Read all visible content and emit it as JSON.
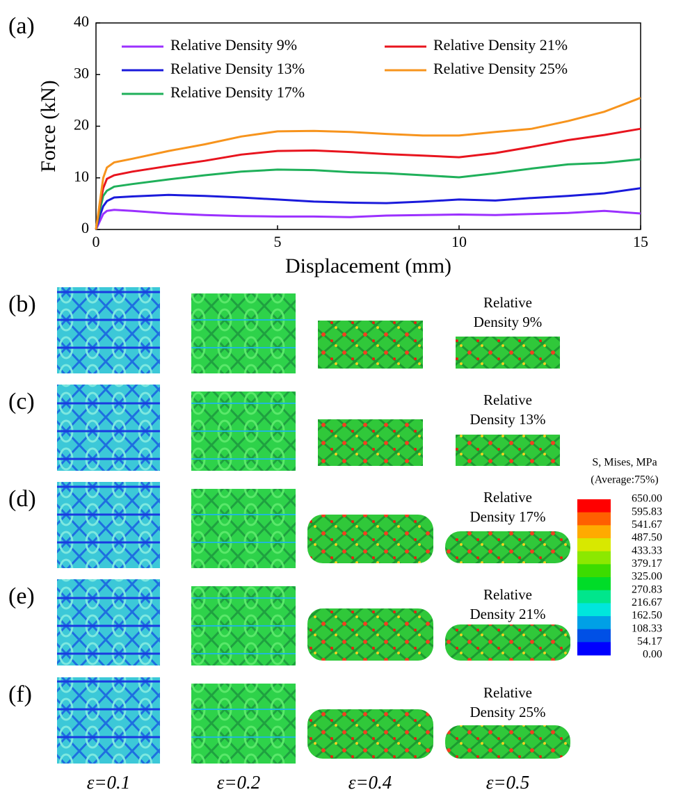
{
  "panel_a_label": "(a)",
  "chart_data": {
    "type": "line",
    "xlabel": "Displacement (mm)",
    "ylabel": "Force (kN)",
    "x": [
      0,
      0.1,
      0.2,
      0.3,
      0.5,
      1,
      2,
      3,
      4,
      5,
      6,
      7,
      8,
      9,
      10,
      11,
      12,
      13,
      14,
      15
    ],
    "series": [
      {
        "name": "Relative Density 9%",
        "color": "#9b30ff",
        "values": [
          0,
          1.5,
          3,
          3.6,
          3.8,
          3.6,
          3.1,
          2.8,
          2.6,
          2.5,
          2.5,
          2.4,
          2.7,
          2.8,
          2.9,
          2.8,
          3.0,
          3.2,
          3.6,
          3.1
        ]
      },
      {
        "name": "Relative Density 13%",
        "color": "#1a1adb",
        "values": [
          0,
          2.5,
          4.5,
          5.5,
          6.2,
          6.4,
          6.7,
          6.5,
          6.2,
          5.8,
          5.4,
          5.2,
          5.1,
          5.4,
          5.8,
          5.6,
          6.1,
          6.5,
          7.0,
          8.0
        ]
      },
      {
        "name": "Relative Density 17%",
        "color": "#1fb05a",
        "values": [
          0,
          3.5,
          6.5,
          7.5,
          8.3,
          8.8,
          9.7,
          10.5,
          11.2,
          11.6,
          11.5,
          11.1,
          10.9,
          10.5,
          10.1,
          10.9,
          11.8,
          12.6,
          12.9,
          13.6
        ]
      },
      {
        "name": "Relative Density 21%",
        "color": "#e8141e",
        "values": [
          0,
          4.5,
          8,
          9.8,
          10.5,
          11.2,
          12.3,
          13.3,
          14.5,
          15.2,
          15.3,
          15.0,
          14.6,
          14.3,
          14.0,
          14.8,
          16.0,
          17.3,
          18.3,
          19.5
        ]
      },
      {
        "name": "Relative Density 25%",
        "color": "#f7941d",
        "values": [
          0,
          5,
          10,
          12,
          13,
          13.7,
          15.2,
          16.5,
          18,
          19,
          19.1,
          18.9,
          18.5,
          18.2,
          18.2,
          18.9,
          19.5,
          21.0,
          22.8,
          25.5
        ]
      }
    ],
    "xlim": [
      0,
      15
    ],
    "xticks": [
      0,
      5,
      10,
      15
    ],
    "ylim": [
      0,
      40
    ],
    "yticks": [
      0,
      10,
      20,
      30,
      40
    ]
  },
  "panels": {
    "labels": [
      "(b)",
      "(c)",
      "(d)",
      "(e)",
      "(f)"
    ],
    "densities": [
      [
        "Relative",
        "Density 9%"
      ],
      [
        "Relative",
        "Density 13%"
      ],
      [
        "Relative",
        "Density 17%"
      ],
      [
        "Relative",
        "Density 21%"
      ],
      [
        "Relative",
        "Density 25%"
      ]
    ],
    "strains": [
      "ε=0.1",
      "ε=0.2",
      "ε=0.4",
      "ε=0.5"
    ]
  },
  "colorbar": {
    "title": "S, Mises, MPa",
    "subtitle": "(Average:75%)",
    "values": [
      "650.00",
      "595.83",
      "541.67",
      "487.50",
      "433.33",
      "379.17",
      "325.00",
      "270.83",
      "216.67",
      "162.50",
      "108.33",
      "54.17",
      "0.00"
    ]
  }
}
